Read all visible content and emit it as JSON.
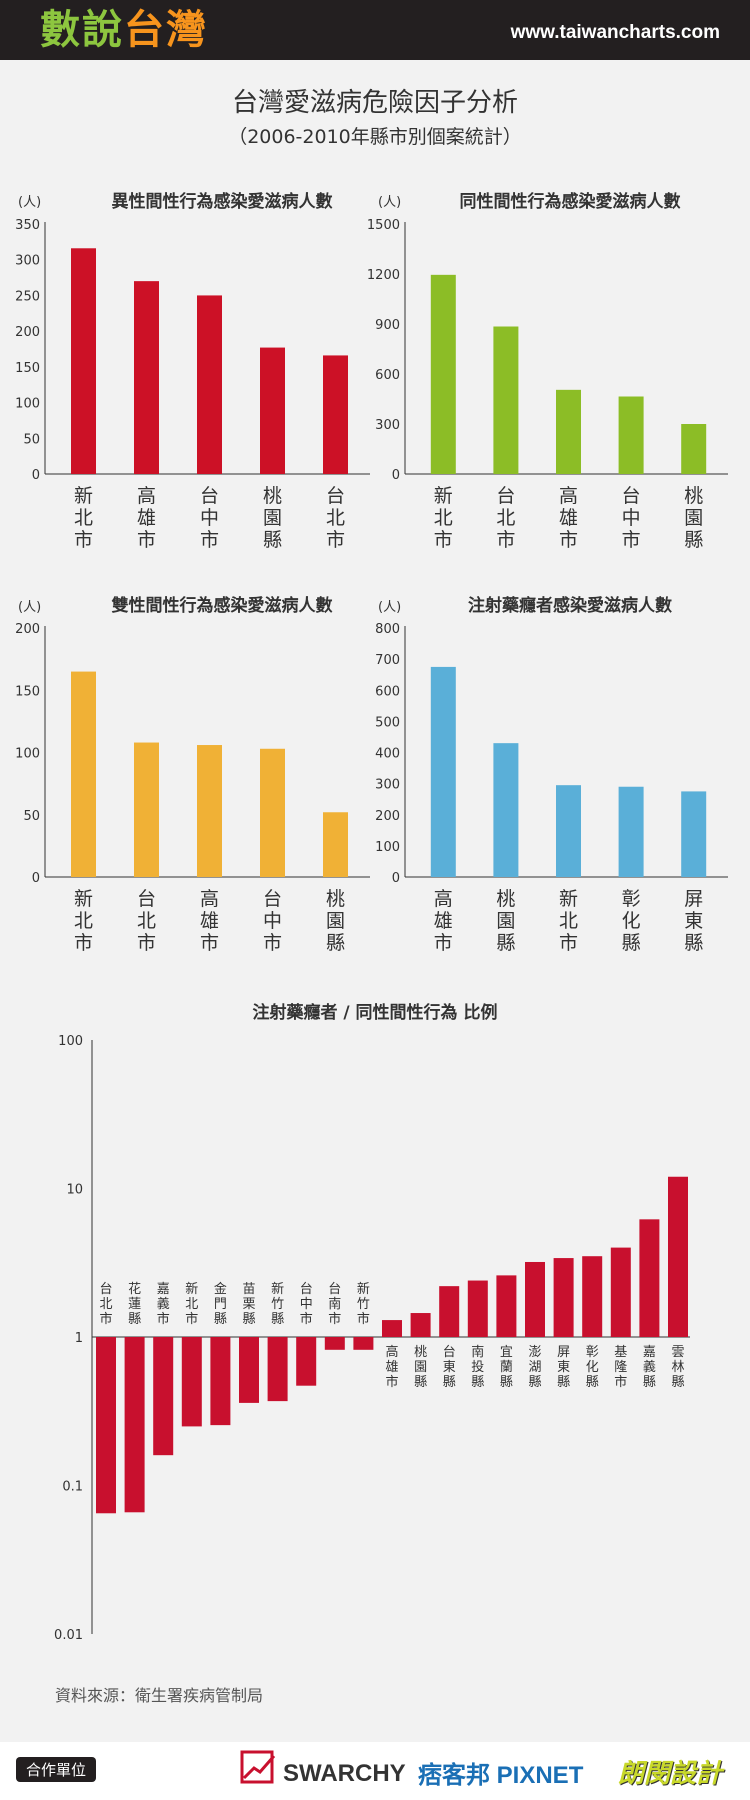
{
  "header": {
    "brand": "數說台灣",
    "url": "www.taiwancharts.com"
  },
  "title": "台灣愛滋病危險因子分析",
  "subtitle": "（2006-2010年縣市別個案統計）",
  "colors": {
    "red": "#cc1126",
    "green": "#8cbd26",
    "orange": "#f0b136",
    "blue": "#5aafd8",
    "ratio": "#c8102e"
  },
  "source": "資料來源：衛生署疾病管制局",
  "footer": {
    "partner_label": "合作單位",
    "logos": [
      "SWARCHY",
      "痞客邦 PIXNET",
      "朗閔設計"
    ]
  },
  "chart_data": [
    {
      "type": "bar",
      "title": "異性間性行為感染愛滋病人數",
      "unit": "(人)",
      "categories": [
        "新北市",
        "高雄市",
        "台中市",
        "桃園縣",
        "台北市"
      ],
      "values": [
        316,
        270,
        250,
        177,
        166
      ],
      "ylim": [
        0,
        350
      ],
      "yticks": [
        0,
        50,
        100,
        150,
        200,
        250,
        300,
        350
      ],
      "color": "#cc1126"
    },
    {
      "type": "bar",
      "title": "同性間性行為感染愛滋病人數",
      "unit": "(人)",
      "categories": [
        "新北市",
        "台北市",
        "高雄市",
        "台中市",
        "桃園縣"
      ],
      "values": [
        1195,
        885,
        505,
        465,
        300
      ],
      "ylim": [
        0,
        1500
      ],
      "yticks": [
        0,
        300,
        600,
        900,
        1200,
        1500
      ],
      "color": "#8cbd26"
    },
    {
      "type": "bar",
      "title": "雙性間性行為感染愛滋病人數",
      "unit": "(人)",
      "categories": [
        "新北市",
        "台北市",
        "高雄市",
        "台中市",
        "桃園縣"
      ],
      "values": [
        165,
        108,
        106,
        103,
        52
      ],
      "ylim": [
        0,
        200
      ],
      "yticks": [
        0,
        50,
        100,
        150,
        200
      ],
      "color": "#f0b136"
    },
    {
      "type": "bar",
      "title": "注射藥癮者感染愛滋病人數",
      "unit": "(人)",
      "categories": [
        "高雄市",
        "桃園縣",
        "新北市",
        "彰化縣",
        "屏東縣"
      ],
      "values": [
        675,
        430,
        295,
        290,
        275
      ],
      "ylim": [
        0,
        800
      ],
      "yticks": [
        0,
        100,
        200,
        300,
        400,
        500,
        600,
        700,
        800
      ],
      "color": "#5aafd8"
    },
    {
      "type": "bar",
      "title": "注射藥癮者 / 同性間性行為 比例",
      "scale": "log",
      "categories": [
        "台北市",
        "花蓮縣",
        "嘉義市",
        "新北市",
        "金門縣",
        "苗栗縣",
        "新竹縣",
        "台中市",
        "台南市",
        "新竹市",
        "高雄市",
        "桃園縣",
        "台東縣",
        "南投縣",
        "宜蘭縣",
        "澎湖縣",
        "屏東縣",
        "彰化縣",
        "基隆市",
        "嘉義縣",
        "雲林縣"
      ],
      "values": [
        0.065,
        0.066,
        0.16,
        0.25,
        0.255,
        0.36,
        0.37,
        0.47,
        0.82,
        0.82,
        1.3,
        1.45,
        2.2,
        2.4,
        2.6,
        3.2,
        3.4,
        3.5,
        4.0,
        6.2,
        12.0
      ],
      "ylim": [
        0.01,
        100
      ],
      "yticks": [
        0.01,
        0.1,
        1,
        10,
        100
      ],
      "color": "#c8102e"
    }
  ]
}
